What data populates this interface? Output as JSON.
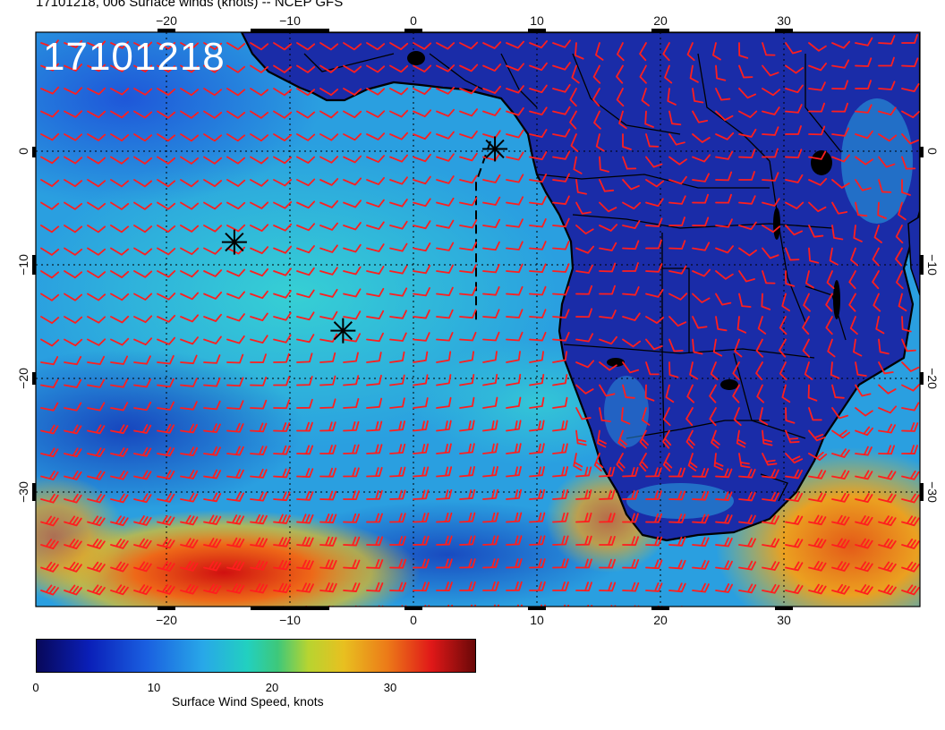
{
  "header": {
    "title": "17101218, 006 Surface winds (knots) -- NCEP GFS"
  },
  "map": {
    "timestamp": "17101218",
    "lon_ticks": [
      "−20",
      "−10",
      "0",
      "10",
      "20",
      "30"
    ],
    "lat_ticks": [
      "0",
      "−10",
      "−20",
      "−30"
    ],
    "land_color": "#1a2ca8",
    "barb_color": "#ff1e1e",
    "graticule": "dotted",
    "markers": [
      {
        "name": "storm-marker",
        "lon": -14.5,
        "lat": -8
      },
      {
        "name": "storm-marker",
        "lon": -5.7,
        "lat": -15.8
      },
      {
        "name": "storm-marker",
        "lon": 6.6,
        "lat": 0.2
      }
    ]
  },
  "colorbar": {
    "ticks": [
      "0",
      "10",
      "20",
      "30"
    ],
    "title": "Surface Wind Speed, knots"
  }
}
